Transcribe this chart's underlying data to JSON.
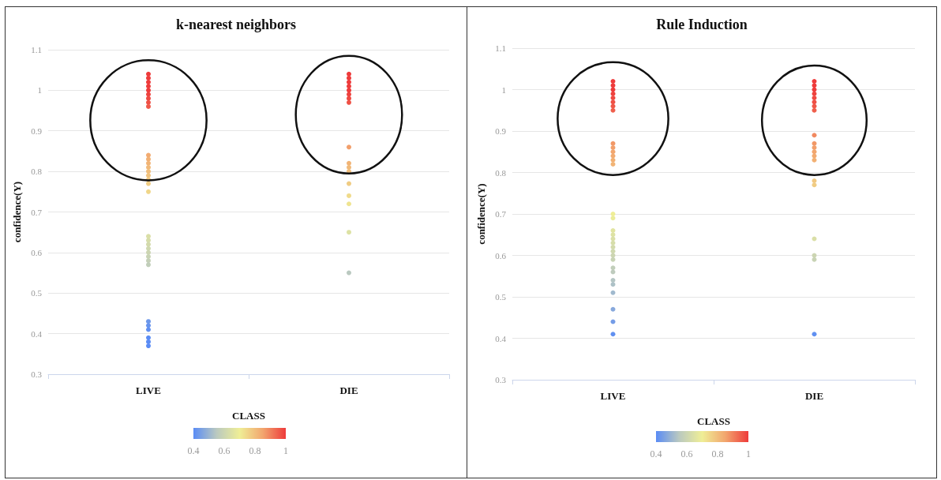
{
  "chart_data": [
    {
      "type": "scatter",
      "title": "k-nearest neighbors",
      "xlabel": "CLASS",
      "ylabel": "confidence(Y)",
      "categories": [
        "LIVE",
        "DIE"
      ],
      "ylim": [
        0.3,
        1.1
      ],
      "yticks": [
        0.3,
        0.4,
        0.5,
        0.6,
        0.7,
        0.8,
        0.9,
        1,
        1.1
      ],
      "grid": "y",
      "marker": "circle",
      "clim": [
        0.4,
        1
      ],
      "cticks": [
        0.4,
        0.6,
        0.8,
        1
      ],
      "series": [
        {
          "x": [
            "LIVE",
            "LIVE",
            "LIVE",
            "LIVE",
            "LIVE",
            "LIVE",
            "LIVE",
            "LIVE",
            "LIVE",
            "LIVE",
            "LIVE",
            "LIVE",
            "LIVE",
            "LIVE",
            "LIVE",
            "LIVE",
            "LIVE",
            "LIVE",
            "LIVE",
            "LIVE",
            "LIVE",
            "LIVE",
            "LIVE",
            "LIVE",
            "LIVE",
            "LIVE",
            "LIVE",
            "LIVE",
            "LIVE",
            "LIVE",
            "LIVE",
            "LIVE",
            "DIE",
            "DIE",
            "DIE",
            "DIE",
            "DIE",
            "DIE",
            "DIE",
            "DIE",
            "DIE",
            "DIE",
            "DIE",
            "DIE",
            "DIE",
            "DIE",
            "DIE",
            "DIE",
            "DIE"
          ],
          "values": [
            1.04,
            1.03,
            1.02,
            1.01,
            1.0,
            0.99,
            0.98,
            0.97,
            0.96,
            0.84,
            0.83,
            0.82,
            0.81,
            0.8,
            0.79,
            0.78,
            0.77,
            0.75,
            0.64,
            0.63,
            0.62,
            0.61,
            0.6,
            0.59,
            0.58,
            0.57,
            0.43,
            0.42,
            0.41,
            0.39,
            0.38,
            0.37,
            1.04,
            1.03,
            1.02,
            1.01,
            1.0,
            0.99,
            0.98,
            0.97,
            0.86,
            0.82,
            0.81,
            0.8,
            0.77,
            0.74,
            0.72,
            0.65,
            0.55
          ],
          "cvalues": [
            1.04,
            1.03,
            1.02,
            1.01,
            1.0,
            0.99,
            0.98,
            0.97,
            0.96,
            0.84,
            0.83,
            0.82,
            0.81,
            0.8,
            0.79,
            0.78,
            0.77,
            0.75,
            0.64,
            0.63,
            0.62,
            0.61,
            0.6,
            0.59,
            0.58,
            0.57,
            0.43,
            0.42,
            0.41,
            0.39,
            0.38,
            0.37,
            1.04,
            1.03,
            1.02,
            1.01,
            1.0,
            0.99,
            0.98,
            0.97,
            0.86,
            0.82,
            0.81,
            0.8,
            0.77,
            0.74,
            0.72,
            0.65,
            0.55
          ]
        }
      ]
    },
    {
      "type": "scatter",
      "title": "Rule Induction",
      "xlabel": "CLASS",
      "ylabel": "confidence(Y)",
      "categories": [
        "LIVE",
        "DIE"
      ],
      "ylim": [
        0.3,
        1.1
      ],
      "yticks": [
        0.3,
        0.4,
        0.5,
        0.6,
        0.7,
        0.8,
        0.9,
        1,
        1.1
      ],
      "grid": "y",
      "marker": "circle",
      "clim": [
        0.4,
        1
      ],
      "cticks": [
        0.4,
        0.6,
        0.8,
        1
      ],
      "series": [
        {
          "x": [
            "LIVE",
            "LIVE",
            "LIVE",
            "LIVE",
            "LIVE",
            "LIVE",
            "LIVE",
            "LIVE",
            "LIVE",
            "LIVE",
            "LIVE",
            "LIVE",
            "LIVE",
            "LIVE",
            "LIVE",
            "LIVE",
            "LIVE",
            "LIVE",
            "LIVE",
            "LIVE",
            "LIVE",
            "LIVE",
            "LIVE",
            "LIVE",
            "LIVE",
            "LIVE",
            "LIVE",
            "LIVE",
            "LIVE",
            "LIVE",
            "LIVE",
            "LIVE",
            "DIE",
            "DIE",
            "DIE",
            "DIE",
            "DIE",
            "DIE",
            "DIE",
            "DIE",
            "DIE",
            "DIE",
            "DIE",
            "DIE",
            "DIE",
            "DIE",
            "DIE",
            "DIE",
            "DIE",
            "DIE",
            "DIE",
            "DIE"
          ],
          "values": [
            1.02,
            1.01,
            1.0,
            0.99,
            0.98,
            0.97,
            0.96,
            0.95,
            0.87,
            0.86,
            0.85,
            0.84,
            0.83,
            0.82,
            0.7,
            0.69,
            0.66,
            0.65,
            0.64,
            0.63,
            0.62,
            0.61,
            0.6,
            0.59,
            0.57,
            0.56,
            0.54,
            0.53,
            0.51,
            0.47,
            0.44,
            0.41,
            1.02,
            1.01,
            1.0,
            0.99,
            0.98,
            0.97,
            0.96,
            0.95,
            0.89,
            0.87,
            0.86,
            0.85,
            0.84,
            0.83,
            0.78,
            0.77,
            0.64,
            0.6,
            0.59,
            0.41
          ],
          "cvalues": [
            1.02,
            1.01,
            1.0,
            0.99,
            0.98,
            0.97,
            0.96,
            0.95,
            0.87,
            0.86,
            0.85,
            0.84,
            0.83,
            0.82,
            0.7,
            0.69,
            0.66,
            0.65,
            0.64,
            0.63,
            0.62,
            0.61,
            0.6,
            0.59,
            0.57,
            0.56,
            0.54,
            0.53,
            0.51,
            0.47,
            0.44,
            0.41,
            1.02,
            1.01,
            1.0,
            0.99,
            0.98,
            0.97,
            0.96,
            0.95,
            0.89,
            0.87,
            0.86,
            0.85,
            0.84,
            0.83,
            0.78,
            0.77,
            0.64,
            0.6,
            0.59,
            0.41
          ]
        }
      ]
    }
  ]
}
